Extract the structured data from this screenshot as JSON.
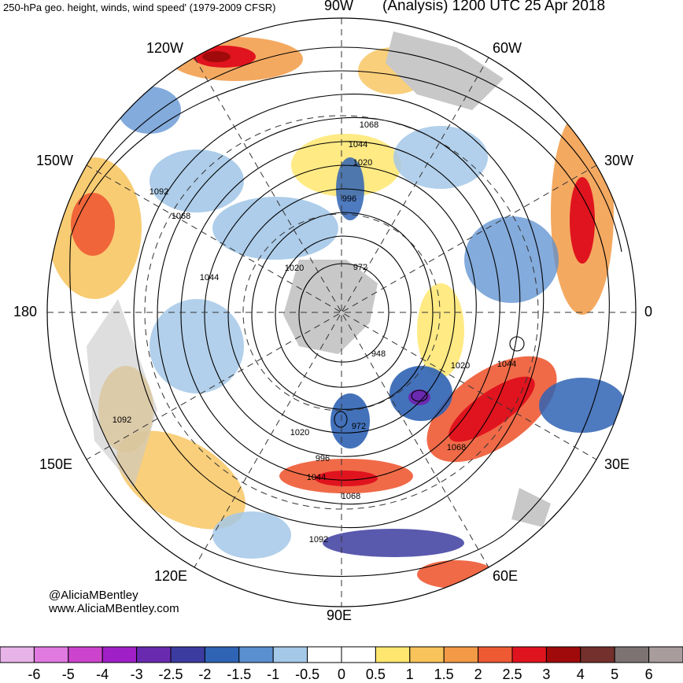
{
  "header": {
    "title_left": "250-hPa geo. height, winds, wind speed' (1979-2009 CFSR)",
    "title_right": "(Analysis) 1200 UTC 25 Apr 2018"
  },
  "credits": {
    "handle": "@AliciaMBentley",
    "website": "www.AliciaMBentley.com"
  },
  "map": {
    "projection": "north-polar-stereographic",
    "longitude_labels": {
      "top": "90W",
      "bottom": "90E",
      "left": "180",
      "right": "0",
      "upper_left_1": "120W",
      "upper_left_2": "150W",
      "upper_right_1": "60W",
      "upper_right_2": "30W",
      "lower_left_1": "150E",
      "lower_left_2": "120E",
      "lower_right_1": "30E",
      "lower_right_2": "60E"
    },
    "contour_labels": [
      "1068",
      "1044",
      "1020",
      "996",
      "1092",
      "1068",
      "1044",
      "1020",
      "972",
      "948",
      "1020",
      "1044",
      "1068",
      "972",
      "1020",
      "996",
      "1044",
      "1068",
      "1092",
      "1092"
    ],
    "colors": {
      "land": "#c8c8c8",
      "contour": "#000000",
      "grid": "#333333"
    }
  },
  "colorbar": {
    "ticks": [
      "-6",
      "-5",
      "-4",
      "-3",
      "-2.5",
      "-2",
      "-1.5",
      "-1",
      "-0.5",
      "0",
      "0.5",
      "1",
      "1.5",
      "2",
      "2.5",
      "3",
      "4",
      "5",
      "6"
    ],
    "colors": [
      "#e8b4e8",
      "#e07ae0",
      "#cc44cc",
      "#a020c8",
      "#6a2ab0",
      "#3c3ca0",
      "#2f63b4",
      "#5a8fd0",
      "#a4c8e8",
      "#ffffff",
      "#ffffff",
      "#ffe66e",
      "#f7c35a",
      "#f29a45",
      "#ee5a34",
      "#e0141e",
      "#a00a0a",
      "#74302c",
      "#7d7373",
      "#a89c9c"
    ]
  }
}
